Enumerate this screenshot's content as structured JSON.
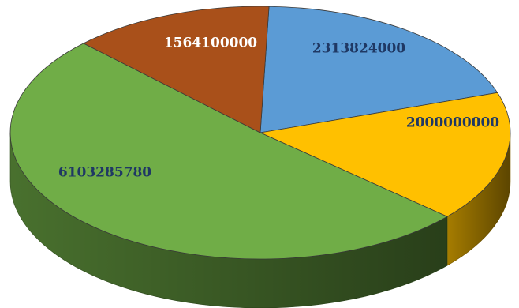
{
  "chart_data": {
    "type": "pie",
    "style": "3d",
    "title": "",
    "legend": "none",
    "slices": [
      {
        "value": 2313824000,
        "label": "2313824000",
        "color": "#5B9BD5",
        "label_color": "#1F3864"
      },
      {
        "value": 2000000000,
        "label": "2000000000",
        "color": "#FFC000",
        "label_color": "#1F3864"
      },
      {
        "value": 6103285780,
        "label": "6103285780",
        "color": "#70AD47",
        "label_color": "#1F3864"
      },
      {
        "value": 1564100000,
        "label": "1564100000",
        "color": "#A9501A",
        "label_color": "#ffffff"
      }
    ]
  }
}
